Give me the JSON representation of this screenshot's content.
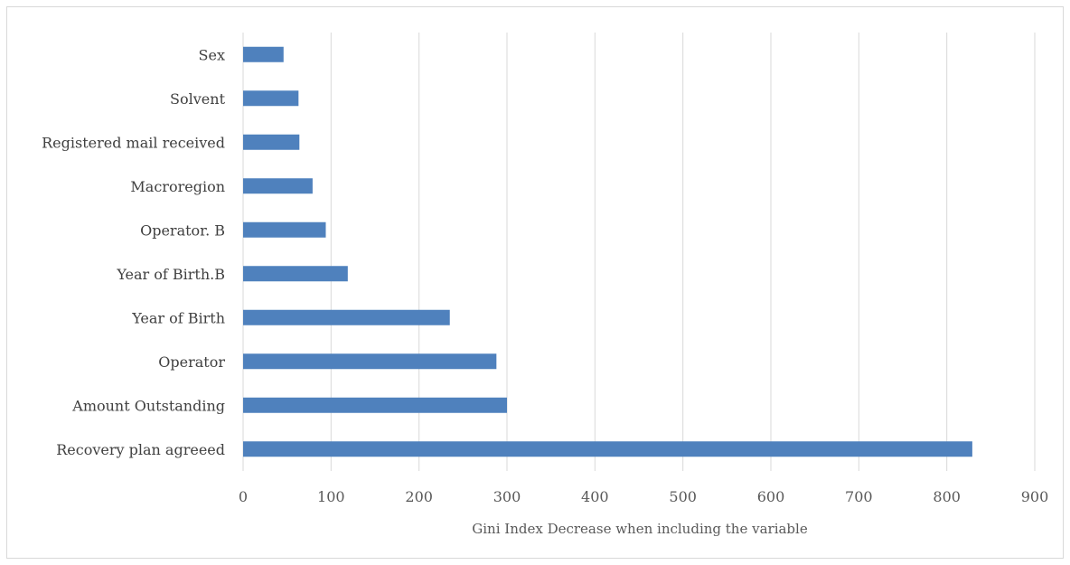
{
  "chart_data": {
    "type": "bar",
    "orientation": "horizontal",
    "categories": [
      "Recovery plan agreeed",
      "Amount Outstanding",
      "Operator",
      "Year of Birth",
      "Year of Birth.B",
      "Operator. B",
      "Macroregion",
      "Registered mail received",
      "Solvent",
      "Sex"
    ],
    "values": [
      829,
      300,
      288,
      235,
      119,
      94,
      79,
      64,
      63,
      46
    ],
    "title": "",
    "xlabel": "Gini Index Decrease when including the variable",
    "ylabel": "",
    "xlim": [
      0,
      900
    ],
    "xticks": [
      0,
      100,
      200,
      300,
      400,
      500,
      600,
      700,
      800,
      900
    ],
    "grid": "vertical",
    "legend": "none",
    "bar_color": "#4f81bd",
    "grid_color": "#d9d9d9"
  }
}
